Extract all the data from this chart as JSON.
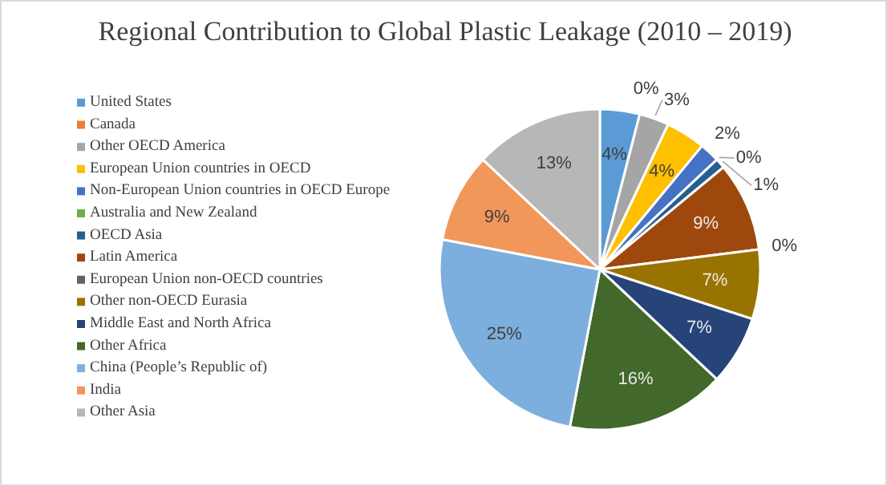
{
  "chart_data": {
    "type": "pie",
    "title": "Regional Contribution to Global Plastic Leakage (2010 – 2019)",
    "categories": [
      "United States",
      "Canada",
      "Other OECD America",
      "European Union countries in OECD",
      "Non-European Union countries in OECD Europe",
      "Australia and New Zealand",
      "OECD Asia",
      "Latin America",
      "European Union non-OECD countries",
      "Other non-OECD Eurasia",
      "Middle East and North Africa",
      "Other Africa",
      "China (People’s Republic of)",
      "India",
      "Other Asia"
    ],
    "values": [
      4,
      0,
      3,
      4,
      2,
      0,
      1,
      9,
      0,
      7,
      7,
      16,
      25,
      9,
      13
    ],
    "value_labels": [
      "4%",
      "0%",
      "3%",
      "4%",
      "2%",
      "0%",
      "1%",
      "9%",
      "0%",
      "7%",
      "7%",
      "16%",
      "25%",
      "9%",
      "13%"
    ],
    "colors": [
      "#5b9bd5",
      "#ed7d31",
      "#a5a5a5",
      "#ffc000",
      "#4472c4",
      "#70ad47",
      "#255e91",
      "#9e480e",
      "#636363",
      "#997300",
      "#264478",
      "#43682b",
      "#7cafdd",
      "#f1975a",
      "#b7b7b7"
    ],
    "legend": "left"
  }
}
